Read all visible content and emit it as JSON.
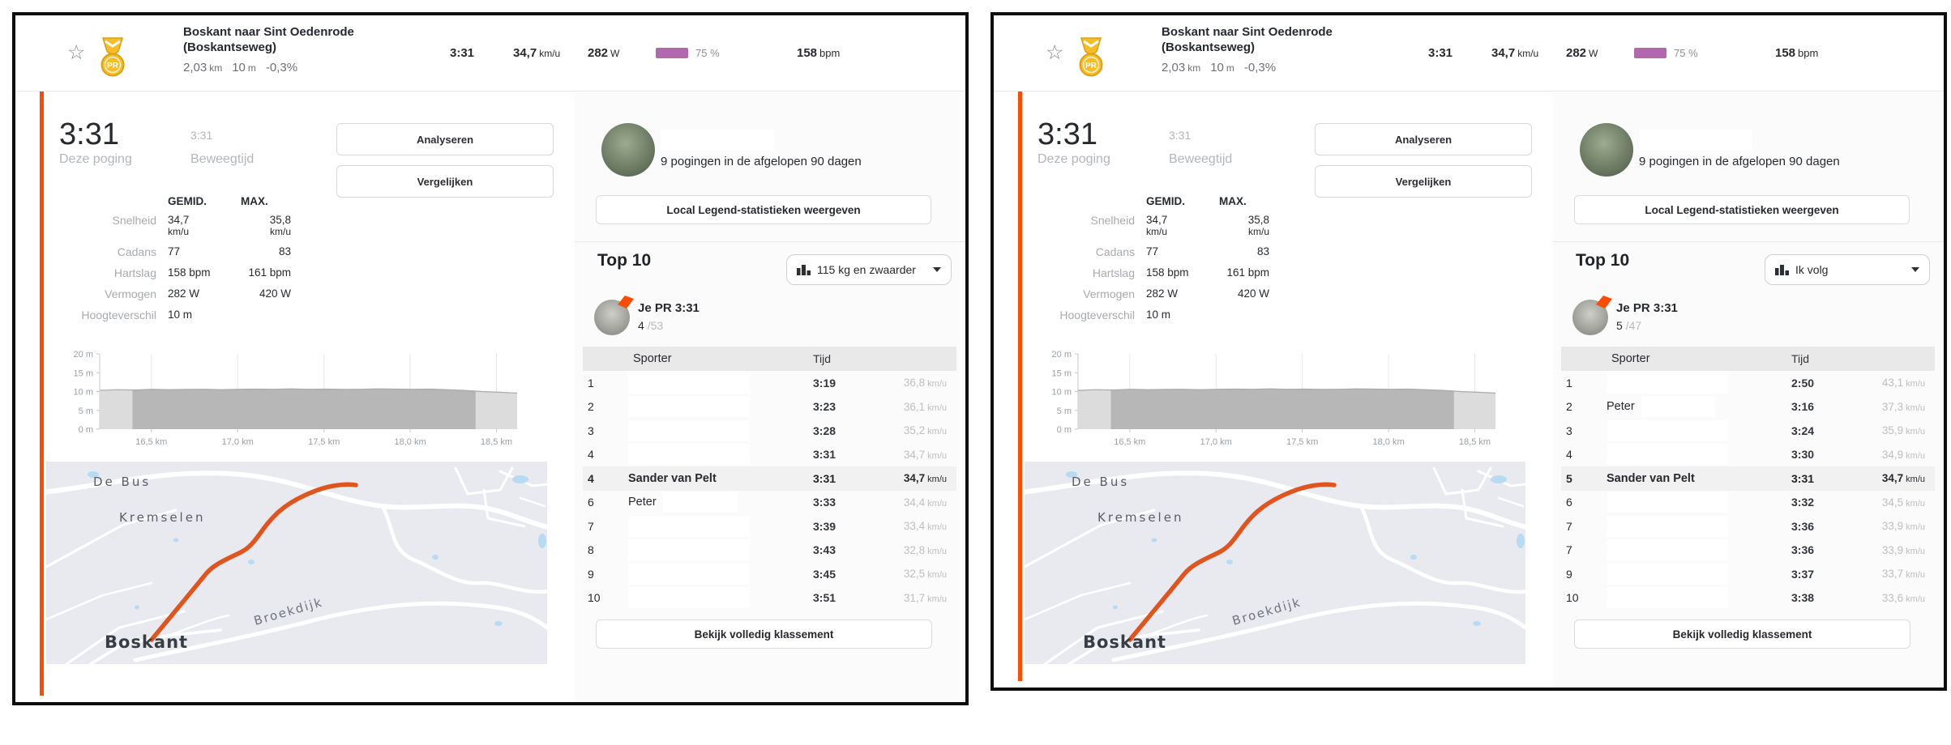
{
  "colors": {
    "accent": "#fc4c02",
    "effort_swatch": "#b168ae",
    "route": "#e0541e",
    "medal_gold": "#f5bd27"
  },
  "panels": [
    {
      "header": {
        "title_line1": "Boskant naar Sint Oedenrode",
        "title_line2": "(Boskantseweg)",
        "distance_value": "2,03",
        "distance_unit": "km",
        "elev_value": "10",
        "elev_unit": "m",
        "grade": "-0,3%",
        "time": "3:31",
        "speed_value": "34,7",
        "speed_unit": "km/u",
        "power_value": "282",
        "power_unit": "W",
        "effort_pct": "75 %",
        "hr_value": "158",
        "hr_unit": "bpm",
        "pr_badge": "PR"
      },
      "attempt": {
        "time": "3:31",
        "label": "Deze poging",
        "moving_time": "3:31",
        "moving_label": "Beweegtijd"
      },
      "actions": {
        "analyze": "Analyseren",
        "compare": "Vergelijken"
      },
      "stats": {
        "avg_header": "GEMID.",
        "max_header": "MAX.",
        "rows": [
          {
            "label": "Snelheid",
            "avg": "34,7",
            "avg_sub": "km/u",
            "max": "35,8",
            "max_sub": "km/u"
          },
          {
            "label": "Cadans",
            "avg": "77",
            "max": "83"
          },
          {
            "label": "Hartslag",
            "avg": "158 bpm",
            "max": "161 bpm"
          },
          {
            "label": "Vermogen",
            "avg": "282 W",
            "max": "420 W"
          },
          {
            "label": "Hoogteverschil",
            "avg": "10 m",
            "max": ""
          }
        ]
      },
      "chart": {
        "type": "area",
        "yticks": [
          "20 m",
          "15 m",
          "10 m",
          "5 m",
          "0 m"
        ],
        "ytick_m": [
          20,
          15,
          10,
          5,
          0
        ],
        "xticks": [
          "16,5 km",
          "17,0 km",
          "17,5 km",
          "18,0 km",
          "18,5 km"
        ],
        "xtick_km": [
          16.5,
          17.0,
          17.5,
          18.0,
          18.5
        ],
        "xlim_km": [
          16.2,
          18.62
        ],
        "ylim_m": [
          0,
          20
        ],
        "segment_km": [
          16.39,
          18.38
        ],
        "elevation_m": [
          10.3,
          10.5,
          10.4,
          10.6,
          10.5,
          10.55,
          10.6,
          10.5,
          10.6,
          10.65,
          10.6,
          10.7,
          10.6,
          10.65,
          10.55,
          10.6,
          10.7,
          10.65,
          10.6,
          10.65,
          10.5,
          10.3,
          10.0,
          9.8,
          9.6
        ]
      },
      "map": {
        "labels": {
          "area1": "De Bus",
          "area2": "Kremselen",
          "town": "Boskant",
          "street": "Broekdijk"
        }
      },
      "legend": {
        "attempts_text": "9 pogingen in de afgelopen 90 dagen",
        "local_legend_button": "Local Legend-statistieken weergeven"
      },
      "leaderboard": {
        "title": "Top 10",
        "filter_label": "115 kg en zwaarder",
        "pr_label": "Je PR 3:31",
        "pr_rank": "4",
        "pr_total": "/53",
        "col_athlete": "Sporter",
        "col_time": "Tijd",
        "speed_unit": "km/u",
        "rows": [
          {
            "rank": "1",
            "redacted": true,
            "time": "3:19",
            "speed": "36,8"
          },
          {
            "rank": "2",
            "redacted": true,
            "time": "3:23",
            "speed": "36,1"
          },
          {
            "rank": "3",
            "redacted": true,
            "time": "3:28",
            "speed": "35,2"
          },
          {
            "rank": "4",
            "redacted": true,
            "time": "3:31",
            "speed": "34,7"
          },
          {
            "rank": "4",
            "name": "Sander van Pelt",
            "highlight": true,
            "time": "3:31",
            "speed": "34,7"
          },
          {
            "rank": "6",
            "name": "Peter",
            "redacted_partial": true,
            "time": "3:33",
            "speed": "34,4"
          },
          {
            "rank": "7",
            "redacted": true,
            "time": "3:39",
            "speed": "33,4"
          },
          {
            "rank": "8",
            "redacted": true,
            "time": "3:43",
            "speed": "32,8"
          },
          {
            "rank": "9",
            "redacted": true,
            "time": "3:45",
            "speed": "32,5"
          },
          {
            "rank": "10",
            "redacted": true,
            "time": "3:51",
            "speed": "31,7"
          }
        ],
        "view_full_button": "Bekijk volledig klassement"
      }
    },
    {
      "header": {
        "title_line1": "Boskant naar Sint Oedenrode",
        "title_line2": "(Boskantseweg)",
        "distance_value": "2,03",
        "distance_unit": "km",
        "elev_value": "10",
        "elev_unit": "m",
        "grade": "-0,3%",
        "time": "3:31",
        "speed_value": "34,7",
        "speed_unit": "km/u",
        "power_value": "282",
        "power_unit": "W",
        "effort_pct": "75 %",
        "hr_value": "158",
        "hr_unit": "bpm",
        "pr_badge": "PR"
      },
      "attempt": {
        "time": "3:31",
        "label": "Deze poging",
        "moving_time": "3:31",
        "moving_label": "Beweegtijd"
      },
      "actions": {
        "analyze": "Analyseren",
        "compare": "Vergelijken"
      },
      "stats": {
        "avg_header": "GEMID.",
        "max_header": "MAX.",
        "rows": [
          {
            "label": "Snelheid",
            "avg": "34,7",
            "avg_sub": "km/u",
            "max": "35,8",
            "max_sub": "km/u"
          },
          {
            "label": "Cadans",
            "avg": "77",
            "max": "83"
          },
          {
            "label": "Hartslag",
            "avg": "158 bpm",
            "max": "161 bpm"
          },
          {
            "label": "Vermogen",
            "avg": "282 W",
            "max": "420 W"
          },
          {
            "label": "Hoogteverschil",
            "avg": "10 m",
            "max": ""
          }
        ]
      },
      "chart": {
        "type": "area",
        "yticks": [
          "20 m",
          "15 m",
          "10 m",
          "5 m",
          "0 m"
        ],
        "ytick_m": [
          20,
          15,
          10,
          5,
          0
        ],
        "xticks": [
          "16,5 km",
          "17,0 km",
          "17,5 km",
          "18,0 km",
          "18,5 km"
        ],
        "xtick_km": [
          16.5,
          17.0,
          17.5,
          18.0,
          18.5
        ],
        "xlim_km": [
          16.2,
          18.62
        ],
        "ylim_m": [
          0,
          20
        ],
        "segment_km": [
          16.39,
          18.38
        ],
        "elevation_m": [
          10.3,
          10.5,
          10.4,
          10.6,
          10.5,
          10.55,
          10.6,
          10.5,
          10.6,
          10.65,
          10.6,
          10.7,
          10.6,
          10.65,
          10.55,
          10.6,
          10.7,
          10.65,
          10.6,
          10.65,
          10.5,
          10.3,
          10.0,
          9.8,
          9.6
        ]
      },
      "map": {
        "labels": {
          "area1": "De Bus",
          "area2": "Kremselen",
          "town": "Boskant",
          "street": "Broekdijk"
        }
      },
      "legend": {
        "attempts_text": "9 pogingen in de afgelopen 90 dagen",
        "local_legend_button": "Local Legend-statistieken weergeven"
      },
      "leaderboard": {
        "title": "Top 10",
        "filter_label": "Ik volg",
        "pr_label": "Je PR 3:31",
        "pr_rank": "5",
        "pr_total": "/47",
        "col_athlete": "Sporter",
        "col_time": "Tijd",
        "speed_unit": "km/u",
        "rows": [
          {
            "rank": "1",
            "redacted": true,
            "time": "2:50",
            "speed": "43,1"
          },
          {
            "rank": "2",
            "name": "Peter",
            "redacted_partial": true,
            "time": "3:16",
            "speed": "37,3"
          },
          {
            "rank": "3",
            "redacted": true,
            "time": "3:24",
            "speed": "35,9"
          },
          {
            "rank": "4",
            "redacted": true,
            "time": "3:30",
            "speed": "34,9"
          },
          {
            "rank": "5",
            "name": "Sander van Pelt",
            "highlight": true,
            "time": "3:31",
            "speed": "34,7"
          },
          {
            "rank": "6",
            "redacted": true,
            "time": "3:32",
            "speed": "34,5"
          },
          {
            "rank": "7",
            "redacted": true,
            "time": "3:36",
            "speed": "33,9"
          },
          {
            "rank": "7",
            "redacted": true,
            "time": "3:36",
            "speed": "33,9"
          },
          {
            "rank": "9",
            "redacted": true,
            "time": "3:37",
            "speed": "33,7"
          },
          {
            "rank": "10",
            "redacted": true,
            "time": "3:38",
            "speed": "33,6"
          }
        ],
        "view_full_button": "Bekijk volledig klassement"
      }
    }
  ]
}
